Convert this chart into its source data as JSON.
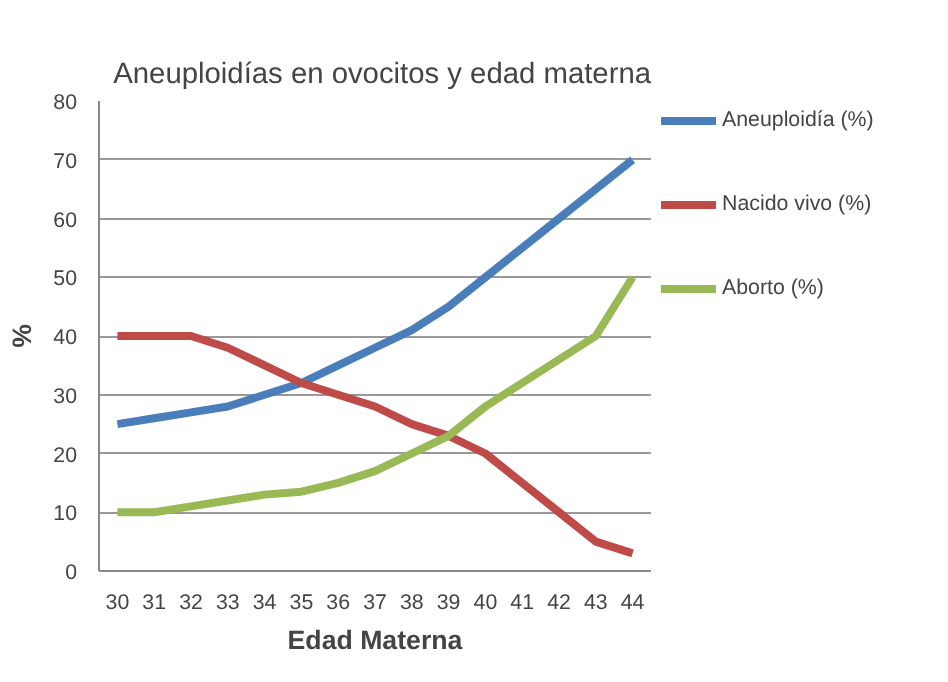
{
  "chart_data": {
    "type": "line",
    "title": "Aneuploidías en ovocitos y edad materna",
    "xlabel": "Edad Materna",
    "ylabel": "%",
    "categories": [
      "30",
      "31",
      "32",
      "33",
      "34",
      "35",
      "36",
      "37",
      "38",
      "39",
      "40",
      "41",
      "42",
      "43",
      "44"
    ],
    "series": [
      {
        "name": "Aneuploidía (%)",
        "color": "#4a7ebb",
        "values": [
          25,
          26,
          27,
          28,
          30,
          32,
          35,
          38,
          41,
          45,
          50,
          55,
          60,
          65,
          70
        ]
      },
      {
        "name": "Nacido vivo (%)",
        "color": "#be4b48",
        "values": [
          40,
          40,
          40,
          38,
          35,
          32,
          30,
          28,
          25,
          23,
          20,
          15,
          10,
          5,
          3
        ]
      },
      {
        "name": "Aborto (%)",
        "color": "#98b954",
        "values": [
          10,
          10,
          11,
          12,
          13,
          13.5,
          15,
          17,
          20,
          23,
          28,
          32,
          36,
          40,
          50
        ]
      }
    ],
    "ylim": [
      0,
      80
    ],
    "yticks": [
      0,
      10,
      20,
      30,
      40,
      50,
      60,
      70,
      80
    ],
    "grid": "y",
    "legend": "right",
    "marker": "none",
    "line_style": "solid"
  }
}
